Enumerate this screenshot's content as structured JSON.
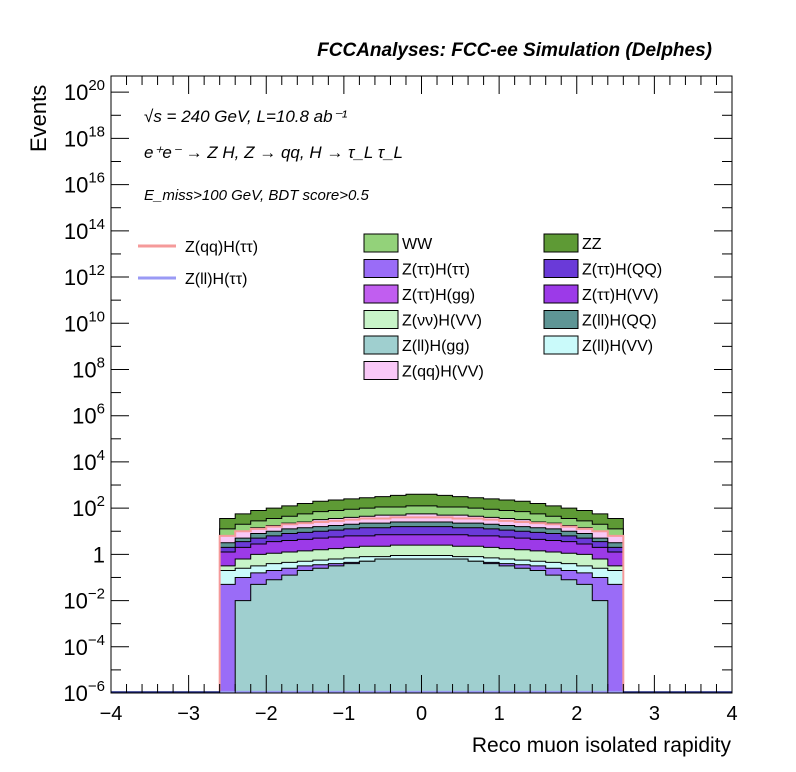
{
  "chart_data": {
    "type": "histogram-stack",
    "title": "FCCAnalyses: FCC-ee Simulation (Delphes)",
    "xlabel": "Reco muon isolated rapidity",
    "ylabel": "Events",
    "xlim": [
      -4,
      4
    ],
    "ylim_log10": [
      -6,
      20.7
    ],
    "log_y": true,
    "x_ticks": [
      "−4",
      "−3",
      "−2",
      "−1",
      "0",
      "1",
      "2",
      "3",
      "4"
    ],
    "annotations": {
      "line1": "√s = 240 GeV, L=10.8 ab⁻¹",
      "line2": "e⁺e⁻ → Z H, Z → qq, H → τ_L τ_L",
      "line3": "E_miss>100 GeV, BDT score>0.5"
    },
    "legend_lines": [
      {
        "name": "Z(qq)H(ττ)",
        "color": "#f59a9a"
      },
      {
        "name": "Z(ll)H(ττ)",
        "color": "#9a9af5"
      }
    ],
    "legend_boxes": [
      {
        "name": "WW",
        "color": "#93d27a"
      },
      {
        "name": "ZZ",
        "color": "#5e9a35"
      },
      {
        "name": "Z(ττ)H(ττ)",
        "color": "#9a6cf7"
      },
      {
        "name": "Z(ττ)H(QQ)",
        "color": "#6a3ad8"
      },
      {
        "name": "Z(ττ)H(gg)",
        "color": "#c15ef0"
      },
      {
        "name": "Z(ττ)H(VV)",
        "color": "#9c3ae8"
      },
      {
        "name": "Z(νν)H(VV)",
        "color": "#c8f4c8"
      },
      {
        "name": "Z(ll)H(QQ)",
        "color": "#5e9595"
      },
      {
        "name": "Z(ll)H(gg)",
        "color": "#9fcfcf"
      },
      {
        "name": "Z(ll)H(VV)",
        "color": "#cafafa"
      },
      {
        "name": "Z(qq)H(VV)",
        "color": "#f9c8f7"
      }
    ],
    "bins": [
      -2.6,
      -2.4,
      -2.2,
      -2.0,
      -1.8,
      -1.6,
      -1.4,
      -1.2,
      -1.0,
      -0.8,
      -0.6,
      -0.4,
      -0.2,
      0.0,
      0.2,
      0.4,
      0.6,
      0.8,
      1.0,
      1.2,
      1.4,
      1.6,
      1.8,
      2.0,
      2.2,
      2.4,
      2.6
    ],
    "stack_log10": [
      {
        "name": "Z(ll)H(gg)",
        "values": [
          -6,
          -2.0,
          -1.3,
          -1.1,
          -0.9,
          -0.7,
          -0.6,
          -0.5,
          -0.4,
          -0.3,
          -0.2,
          -0.2,
          -0.2,
          -0.2,
          -0.2,
          -0.2,
          -0.3,
          -0.4,
          -0.5,
          -0.6,
          -0.7,
          -0.9,
          -1.1,
          -1.3,
          -2.0,
          -6
        ]
      },
      {
        "name": "Z(ττ)H(ττ)",
        "values": [
          -1.3,
          -1.0,
          -0.8,
          -0.7,
          -0.6,
          -0.5,
          -0.45,
          -0.4,
          -0.35,
          -0.3,
          -0.25,
          -0.25,
          -0.2,
          -0.2,
          -0.25,
          -0.25,
          -0.3,
          -0.35,
          -0.4,
          -0.45,
          -0.5,
          -0.6,
          -0.7,
          -0.8,
          -1.0,
          -1.3
        ]
      },
      {
        "name": "Z(ll)H(VV)",
        "values": [
          -0.7,
          -0.6,
          -0.5,
          -0.4,
          -0.35,
          -0.3,
          -0.25,
          -0.2,
          -0.15,
          -0.1,
          -0.1,
          -0.05,
          -0.05,
          -0.05,
          -0.05,
          -0.1,
          -0.1,
          -0.15,
          -0.2,
          -0.25,
          -0.3,
          -0.35,
          -0.4,
          -0.5,
          -0.6,
          -0.7
        ]
      },
      {
        "name": "Z(νν)H(VV)",
        "values": [
          -0.5,
          -0.2,
          0.0,
          0.05,
          0.1,
          0.15,
          0.2,
          0.25,
          0.3,
          0.35,
          0.35,
          0.4,
          0.4,
          0.4,
          0.4,
          0.35,
          0.35,
          0.3,
          0.25,
          0.2,
          0.15,
          0.1,
          0.05,
          0.0,
          -0.2,
          -0.5
        ]
      },
      {
        "name": "Z(ττ)H(VV)",
        "values": [
          0.1,
          0.3,
          0.45,
          0.55,
          0.6,
          0.65,
          0.7,
          0.75,
          0.8,
          0.8,
          0.85,
          0.85,
          0.85,
          0.85,
          0.85,
          0.85,
          0.8,
          0.8,
          0.75,
          0.7,
          0.65,
          0.6,
          0.55,
          0.45,
          0.3,
          0.1
        ]
      },
      {
        "name": "Z(ττ)H(QQ)",
        "values": [
          0.3,
          0.55,
          0.7,
          0.8,
          0.9,
          0.95,
          1.0,
          1.05,
          1.1,
          1.15,
          1.15,
          1.2,
          1.2,
          1.2,
          1.2,
          1.15,
          1.15,
          1.1,
          1.05,
          1.0,
          0.95,
          0.9,
          0.8,
          0.7,
          0.55,
          0.3
        ]
      },
      {
        "name": "Z(ll)H(QQ)",
        "values": [
          0.5,
          0.7,
          0.9,
          1.0,
          1.1,
          1.15,
          1.2,
          1.25,
          1.3,
          1.35,
          1.35,
          1.4,
          1.4,
          1.4,
          1.4,
          1.35,
          1.35,
          1.3,
          1.25,
          1.2,
          1.15,
          1.1,
          1.0,
          0.9,
          0.7,
          0.5
        ]
      },
      {
        "name": "Z(qq)H(VV)",
        "values": [
          0.8,
          1.0,
          1.15,
          1.25,
          1.35,
          1.4,
          1.5,
          1.55,
          1.6,
          1.65,
          1.7,
          1.7,
          1.75,
          1.75,
          1.7,
          1.7,
          1.65,
          1.6,
          1.55,
          1.5,
          1.4,
          1.35,
          1.25,
          1.15,
          1.0,
          0.8
        ]
      },
      {
        "name": "WW",
        "values": [
          1.1,
          1.3,
          1.45,
          1.55,
          1.65,
          1.75,
          1.85,
          1.9,
          1.95,
          2.0,
          2.05,
          2.05,
          2.1,
          2.1,
          2.05,
          2.05,
          2.0,
          1.95,
          1.9,
          1.85,
          1.75,
          1.65,
          1.55,
          1.45,
          1.3,
          1.1
        ]
      },
      {
        "name": "ZZ",
        "values": [
          1.55,
          1.75,
          1.9,
          2.0,
          2.1,
          2.2,
          2.3,
          2.35,
          2.4,
          2.45,
          2.5,
          2.55,
          2.6,
          2.6,
          2.55,
          2.5,
          2.45,
          2.4,
          2.35,
          2.3,
          2.2,
          2.1,
          2.0,
          1.9,
          1.75,
          1.55
        ]
      }
    ],
    "line_log10": [
      {
        "name": "Z(qq)H(ττ)",
        "values": [
          0.8,
          1.0,
          1.1,
          1.2,
          1.3,
          1.35,
          1.4,
          1.45,
          1.5,
          1.55,
          1.55,
          1.6,
          1.6,
          1.6,
          1.6,
          1.55,
          1.55,
          1.5,
          1.45,
          1.4,
          1.35,
          1.3,
          1.2,
          1.1,
          1.0,
          0.8
        ]
      },
      {
        "name": "Z(ll)H(ττ)",
        "values": [
          -6,
          -6,
          -6,
          -6,
          -6,
          -6,
          -6,
          -6,
          -6,
          -6,
          -6,
          -6,
          -6,
          -6,
          -6,
          -6,
          -6,
          -6,
          -6,
          -6,
          -6,
          -6,
          -6,
          -6,
          -6,
          -6
        ]
      }
    ]
  }
}
